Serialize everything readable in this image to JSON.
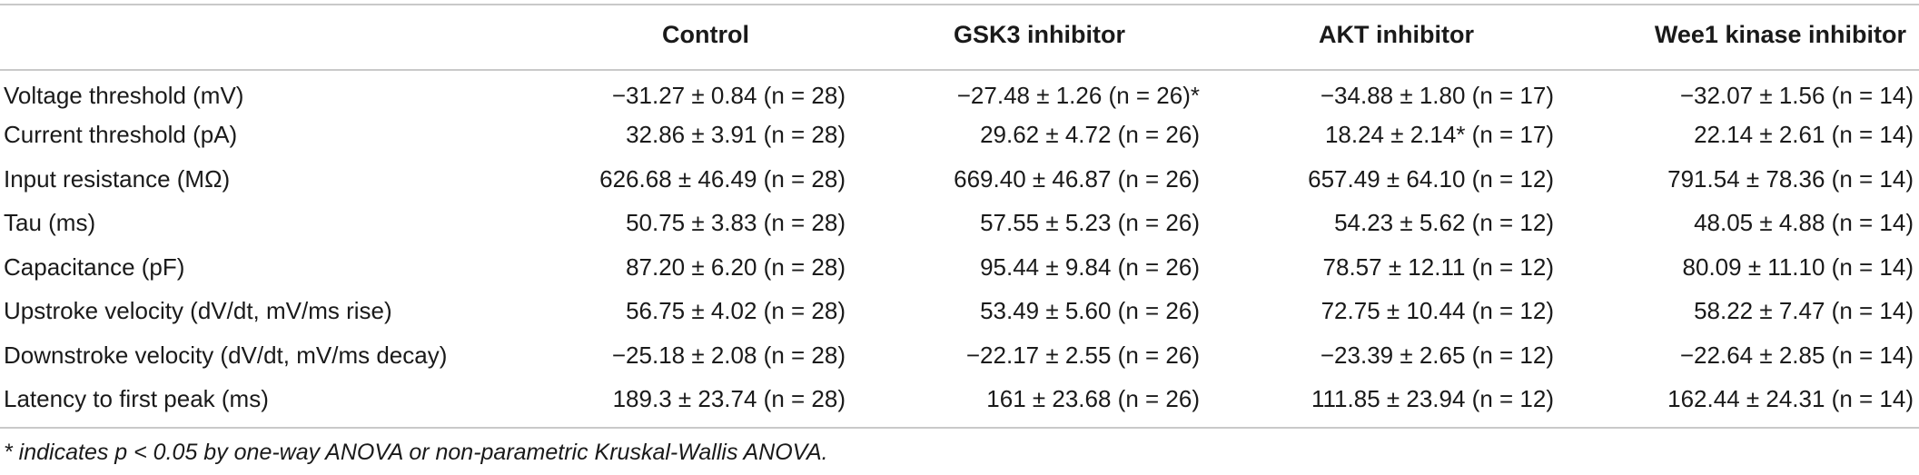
{
  "table": {
    "headers": [
      "",
      "Control",
      "GSK3 inhibitor",
      "AKT inhibitor",
      "Wee1 kinase inhibitor"
    ],
    "rows": [
      {
        "label": "Voltage threshold (mV)",
        "cells": [
          "−31.27 ± 0.84 (n = 28)",
          "−27.48 ± 1.26 (n = 26)*",
          "−34.88 ± 1.80 (n = 17)",
          "−32.07 ± 1.56 (n = 14)"
        ]
      },
      {
        "label": "Current threshold (pA)",
        "cells": [
          "32.86 ± 3.91 (n = 28)",
          "29.62 ± 4.72 (n = 26)",
          "18.24 ± 2.14* (n = 17)",
          "22.14 ± 2.61 (n = 14)"
        ]
      },
      {
        "label": "Input resistance (MΩ)",
        "cells": [
          "626.68 ± 46.49 (n = 28)",
          "669.40 ± 46.87 (n = 26)",
          "657.49 ± 64.10 (n = 12)",
          "791.54 ± 78.36 (n = 14)"
        ]
      },
      {
        "label": "Tau (ms)",
        "cells": [
          "50.75 ± 3.83 (n = 28)",
          "57.55 ± 5.23 (n = 26)",
          "54.23 ± 5.62 (n = 12)",
          "48.05 ± 4.88 (n = 14)"
        ]
      },
      {
        "label": "Capacitance (pF)",
        "cells": [
          "87.20 ± 6.20 (n = 28)",
          "95.44 ± 9.84 (n = 26)",
          "78.57 ± 12.11 (n = 12)",
          "80.09 ± 11.10 (n = 14)"
        ]
      },
      {
        "label": "Upstroke velocity (dV/dt, mV/ms rise)",
        "cells": [
          "56.75 ± 4.02 (n = 28)",
          "53.49 ± 5.60 (n = 26)",
          "72.75 ± 10.44 (n = 12)",
          "58.22 ± 7.47 (n = 14)"
        ]
      },
      {
        "label": "Downstroke velocity (dV/dt, mV/ms decay)",
        "cells": [
          "−25.18 ± 2.08 (n = 28)",
          "−22.17 ± 2.55 (n = 26)",
          "−23.39 ± 2.65 (n = 12)",
          "−22.64 ± 2.85 (n = 14)"
        ]
      },
      {
        "label": "Latency to first peak (ms)",
        "cells": [
          "189.3 ± 23.74 (n = 28)",
          "161 ± 23.68 (n = 26)",
          "111.85 ± 23.94 (n = 12)",
          "162.44 ± 24.31 (n = 14)"
        ]
      }
    ]
  },
  "footnote": "* indicates p < 0.05 by one-way ANOVA or non-parametric Kruskal-Wallis ANOVA."
}
